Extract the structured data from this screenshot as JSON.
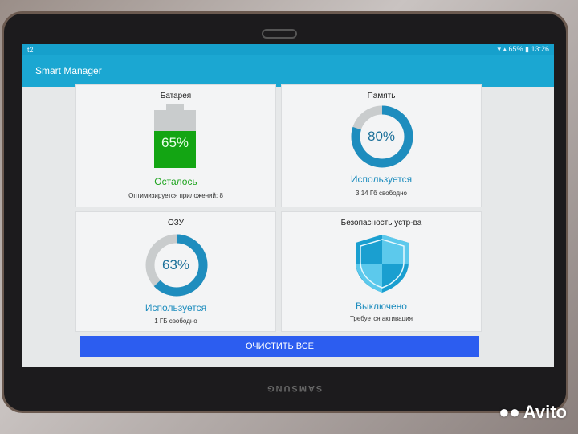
{
  "status_bar": {
    "left": "t2",
    "battery": "65%",
    "time": "13:26"
  },
  "app": {
    "title": "Smart Manager"
  },
  "cards": {
    "battery": {
      "title": "Батарея",
      "value": "65%",
      "percent": 65,
      "label": "Осталось",
      "sub": "Оптимизируется приложений: 8",
      "color": "#1ea41e"
    },
    "storage": {
      "title": "Память",
      "value": "80%",
      "percent": 80,
      "label": "Используется",
      "sub": "3,14 Гб свободно",
      "color": "#1e8dbe"
    },
    "ram": {
      "title": "ОЗУ",
      "value": "63%",
      "percent": 63,
      "label": "Используется",
      "sub": "1 ГБ свободно",
      "color": "#1e8dbe"
    },
    "security": {
      "title": "Безопасность устр-ва",
      "label": "Выключено",
      "sub": "Требуется активация",
      "icon": "shield-icon"
    }
  },
  "clean_button": "ОЧИСТИТЬ ВСЕ",
  "device_brand": "SAMSUNG",
  "watermark": "Avito"
}
